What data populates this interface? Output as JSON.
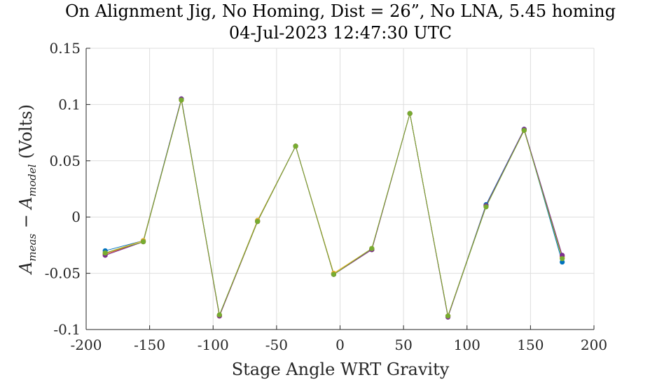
{
  "chart_data": {
    "type": "line",
    "title": "On Alignment Jig, No Homing, Dist = 26”, No LNA, 5.45 homing",
    "subtitle": "04-Jul-2023 12:47:30 UTC",
    "xlabel": "Stage Angle WRT Gravity",
    "ylabel_main": "A",
    "ylabel_sub1": "meas",
    "ylabel_minus": " − A",
    "ylabel_sub2": "model",
    "ylabel_units": " (Volts)",
    "xlim": [
      -200,
      200
    ],
    "ylim": [
      -0.1,
      0.15
    ],
    "xticks": [
      -200,
      -150,
      -100,
      -50,
      0,
      50,
      100,
      150,
      200
    ],
    "xtick_labels": [
      "-200",
      "-150",
      "-100",
      "-50",
      "0",
      "50",
      "100",
      "150",
      "200"
    ],
    "yticks": [
      -0.1,
      -0.05,
      0,
      0.05,
      0.1,
      0.15
    ],
    "ytick_labels": [
      "-0.1",
      "-0.05",
      "0",
      "0.05",
      "0.1",
      "0.15"
    ],
    "grid": true,
    "x": [
      -185,
      -155,
      -125,
      -95,
      -65,
      -35,
      -5,
      25,
      55,
      85,
      115,
      145,
      175
    ],
    "series": [
      {
        "color": "#0072BD",
        "values": [
          -0.03,
          -0.021,
          0.105,
          -0.087,
          -0.003,
          0.063,
          -0.051,
          -0.029,
          0.092,
          -0.088,
          0.011,
          0.078,
          -0.04
        ]
      },
      {
        "color": "#D95319",
        "values": [
          -0.033,
          -0.022,
          0.104,
          -0.088,
          -0.004,
          0.063,
          -0.051,
          -0.029,
          0.092,
          -0.088,
          0.01,
          0.077,
          -0.035
        ]
      },
      {
        "color": "#EDB120",
        "values": [
          -0.032,
          -0.021,
          0.104,
          -0.087,
          -0.003,
          0.063,
          -0.05,
          -0.028,
          0.092,
          -0.088,
          0.01,
          0.077,
          -0.036
        ]
      },
      {
        "color": "#7E2F8E",
        "values": [
          -0.034,
          -0.022,
          0.105,
          -0.088,
          -0.004,
          0.063,
          -0.051,
          -0.029,
          0.092,
          -0.089,
          0.01,
          0.078,
          -0.034
        ]
      },
      {
        "color": "#77AC30",
        "values": [
          -0.032,
          -0.022,
          0.104,
          -0.087,
          -0.004,
          0.063,
          -0.051,
          -0.028,
          0.092,
          -0.088,
          0.009,
          0.077,
          -0.037
        ]
      }
    ]
  }
}
